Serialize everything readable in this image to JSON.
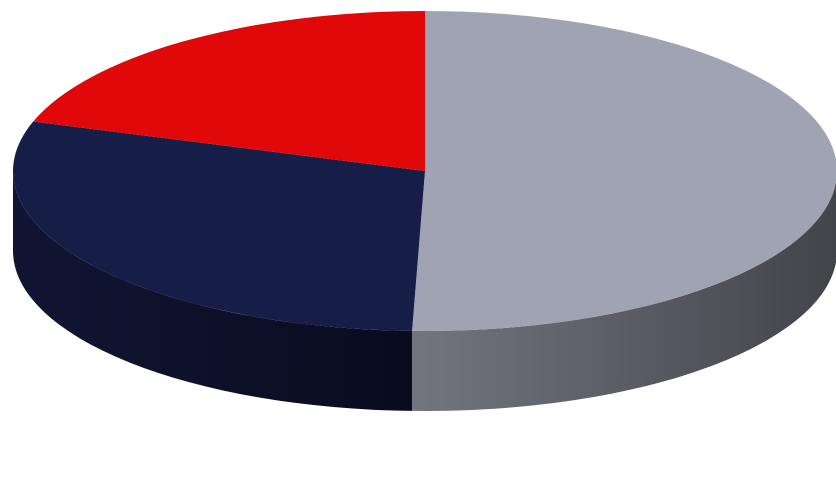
{
  "chart_data": {
    "type": "pie",
    "variant": "3d",
    "title": "",
    "legend": "none",
    "data_labels": "none",
    "slices": [
      {
        "value": 50.5,
        "color": "#a0a3b1"
      },
      {
        "value": 29.5,
        "color": "#161d47"
      },
      {
        "value": 20.0,
        "color": "#e00808"
      }
    ]
  }
}
